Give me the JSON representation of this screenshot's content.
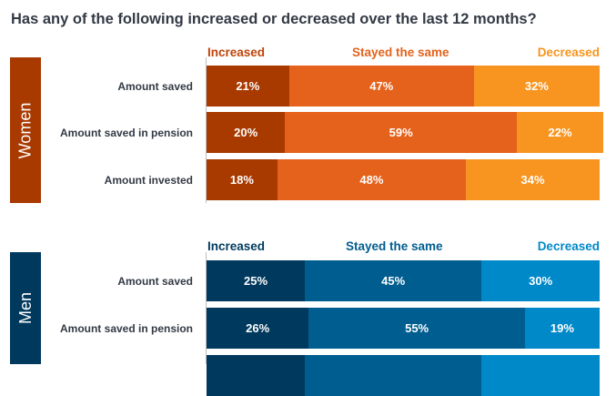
{
  "title": "Has any of the following increased or decreased over the last 12 months?",
  "panels": [
    {
      "label": "Women",
      "categories": [
        "Increased",
        "Stayed the same",
        "Decreased"
      ],
      "colors": [
        "#a83a00",
        "#e5621c",
        "#f79520"
      ],
      "rows": [
        {
          "label": "Amount saved",
          "values": [
            21,
            47,
            32
          ]
        },
        {
          "label": "Amount saved in pension",
          "values": [
            20,
            59,
            22
          ]
        },
        {
          "label": "Amount invested",
          "values": [
            18,
            48,
            34
          ]
        }
      ]
    },
    {
      "label": "Men",
      "categories": [
        "Increased",
        "Stayed the same",
        "Decreased"
      ],
      "colors": [
        "#00395e",
        "#005d8f",
        "#0089c9"
      ],
      "rows": [
        {
          "label": "Amount saved",
          "values": [
            25,
            45,
            30
          ]
        },
        {
          "label": "Amount saved in pension",
          "values": [
            26,
            55,
            19
          ]
        },
        {
          "label": "",
          "values": []
        }
      ]
    }
  ],
  "chart_data": [
    {
      "type": "bar",
      "orientation": "horizontal",
      "stacked": true,
      "percent": true,
      "title": "Has any of the following increased or decreased over the last 12 months?",
      "group": "Women",
      "categories": [
        "Amount saved",
        "Amount saved in pension",
        "Amount invested"
      ],
      "series": [
        {
          "name": "Increased",
          "values": [
            21,
            20,
            18
          ]
        },
        {
          "name": "Stayed the same",
          "values": [
            47,
            59,
            48
          ]
        },
        {
          "name": "Decreased",
          "values": [
            32,
            22,
            34
          ]
        }
      ],
      "legend": "top"
    },
    {
      "type": "bar",
      "orientation": "horizontal",
      "stacked": true,
      "percent": true,
      "group": "Men",
      "categories": [
        "Amount saved",
        "Amount saved in pension"
      ],
      "series": [
        {
          "name": "Increased",
          "values": [
            25,
            26
          ]
        },
        {
          "name": "Stayed the same",
          "values": [
            45,
            55
          ]
        },
        {
          "name": "Decreased",
          "values": [
            30,
            19
          ]
        }
      ],
      "legend": "top"
    }
  ]
}
